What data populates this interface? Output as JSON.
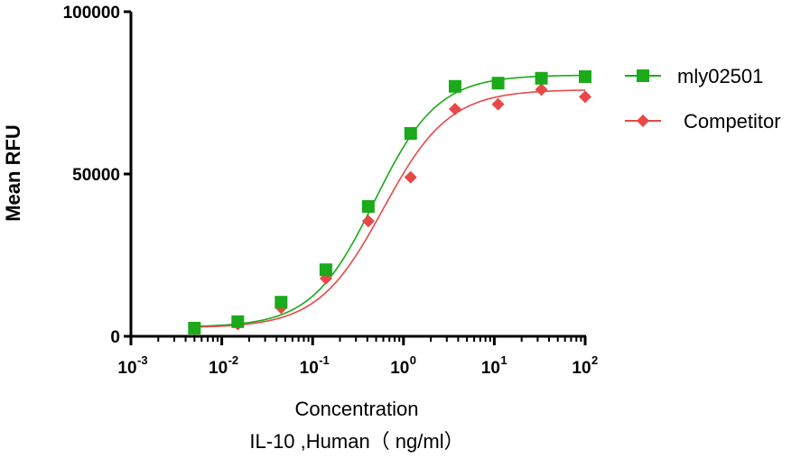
{
  "chart_data": {
    "type": "scatter",
    "xlabel_line1": "Concentration",
    "xlabel_line2": "IL-10 ,Human（ ng/ml）",
    "ylabel": "Mean RFU",
    "xscale": "log",
    "xlim": [
      0.001,
      100
    ],
    "ylim": [
      0,
      100000
    ],
    "yticks": [
      "0",
      "50000",
      "100000"
    ],
    "xticks": [
      {
        "base": "10",
        "exp": "-3"
      },
      {
        "base": "10",
        "exp": "-2"
      },
      {
        "base": "10",
        "exp": "-1"
      },
      {
        "base": "10",
        "exp": "0"
      },
      {
        "base": "10",
        "exp": "1"
      },
      {
        "base": "10",
        "exp": "2"
      }
    ],
    "legend_position": "top-right",
    "series": [
      {
        "name": "mly02501",
        "color": "#1aaa1a",
        "marker": "square",
        "x": [
          0.005,
          0.015,
          0.045,
          0.14,
          0.41,
          1.2,
          3.7,
          11,
          33,
          100
        ],
        "y": [
          2500,
          4500,
          10500,
          20500,
          40000,
          62500,
          77000,
          78000,
          79500,
          80000
        ],
        "fit": {
          "bottom": 2800,
          "top": 80500,
          "ec50": 0.48,
          "hill": 1.25
        }
      },
      {
        "name": "Competitor",
        "color": "#e84848",
        "marker": "diamond",
        "x": [
          0.005,
          0.015,
          0.045,
          0.14,
          0.41,
          1.2,
          3.7,
          11,
          33,
          100
        ],
        "y": [
          2300,
          3700,
          8800,
          17800,
          35500,
          49000,
          70000,
          71500,
          76000,
          73800
        ],
        "fit": {
          "bottom": 2600,
          "top": 76000,
          "ec50": 0.6,
          "hill": 1.2
        }
      }
    ]
  }
}
